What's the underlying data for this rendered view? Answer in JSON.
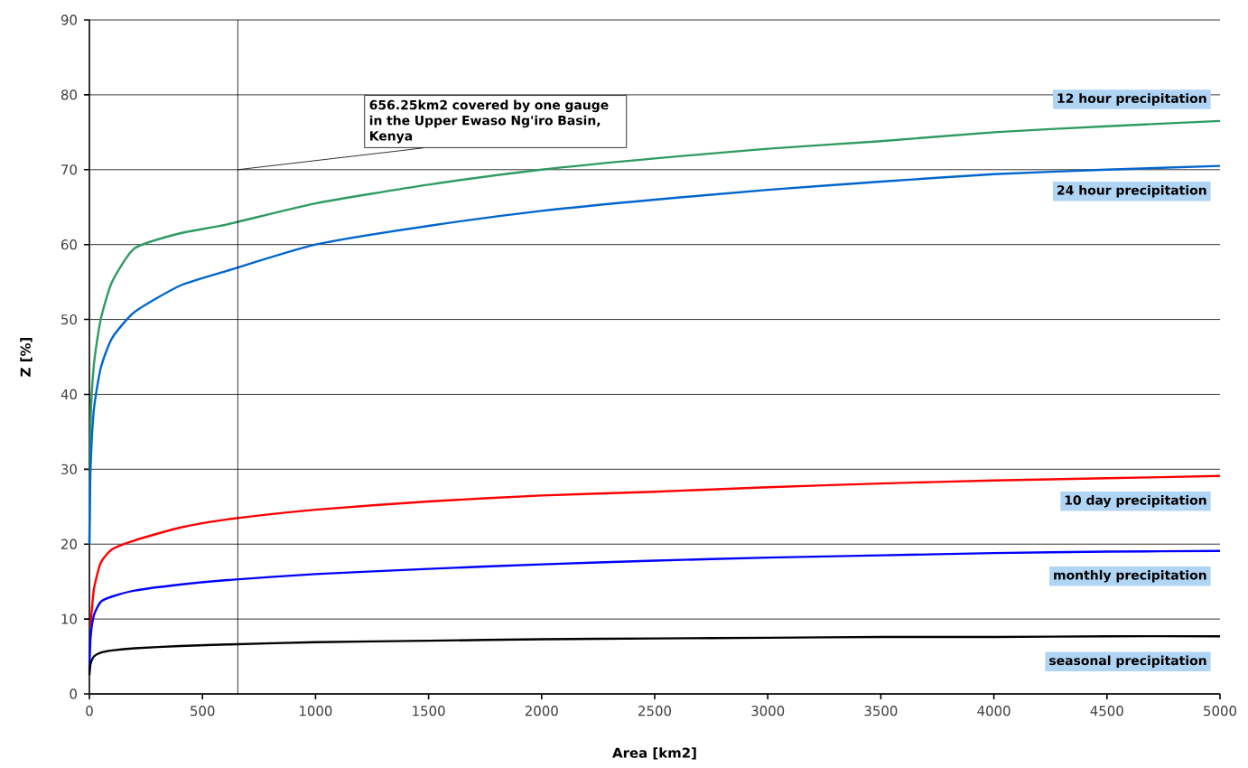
{
  "chart_data": {
    "type": "line",
    "xlabel": "Area [km2]",
    "ylabel": "Z [%]",
    "xlim": [
      0,
      5000
    ],
    "ylim": [
      0,
      90
    ],
    "xticks": [
      0,
      500,
      1000,
      1500,
      2000,
      2500,
      3000,
      3500,
      4000,
      4500,
      5000
    ],
    "yticks": [
      0,
      10,
      20,
      30,
      40,
      50,
      60,
      70,
      80,
      90
    ],
    "grid": "y",
    "legend": false,
    "marker": "none",
    "line_style": "solid",
    "ref_lines": [
      {
        "axis": "x",
        "value": 656.25,
        "color": "#000000"
      }
    ],
    "annotations": [
      {
        "text": "656.25km2 covered by one gauge in the Upper Ewaso Ng'iro Basin, Kenya",
        "x": 656.25,
        "y": 70
      }
    ],
    "x": [
      0,
      5,
      20,
      50,
      100,
      200,
      400,
      610,
      1000,
      1500,
      2000,
      2500,
      3000,
      3500,
      4000,
      4500,
      5000
    ],
    "series": [
      {
        "name": "12 hour precipitation",
        "color": "#2e9b63",
        "values": [
          20,
          36,
          44,
          50,
          55,
          59.5,
          61.5,
          62.7,
          65.5,
          68,
          70,
          71.5,
          72.8,
          73.8,
          75,
          75.8,
          76.5
        ]
      },
      {
        "name": "24 hour precipitation",
        "color": "#0066cc",
        "values": [
          20,
          30,
          38,
          43.5,
          47.5,
          51,
          54.5,
          56.5,
          60,
          62.5,
          64.5,
          66,
          67.3,
          68.4,
          69.4,
          70,
          70.5
        ]
      },
      {
        "name": "10 day precipitation",
        "color": "#ff0000",
        "values": [
          null,
          9,
          14,
          17.5,
          19.3,
          20.5,
          22.2,
          23.3,
          24.6,
          25.7,
          26.5,
          27,
          27.6,
          28.1,
          28.5,
          28.8,
          29.1
        ]
      },
      {
        "name": "monthly precipitation",
        "color": "#0000ff",
        "values": [
          3,
          7.5,
          10.5,
          12.3,
          13,
          13.8,
          14.6,
          15.2,
          16,
          16.7,
          17.3,
          17.8,
          18.2,
          18.5,
          18.8,
          19,
          19.1
        ]
      },
      {
        "name": "seasonal precipitation",
        "color": "#000000",
        "values": [
          2.5,
          4,
          5,
          5.5,
          5.8,
          6.1,
          6.4,
          6.6,
          6.9,
          7.1,
          7.3,
          7.4,
          7.5,
          7.6,
          7.6,
          7.7,
          7.7
        ]
      }
    ]
  }
}
